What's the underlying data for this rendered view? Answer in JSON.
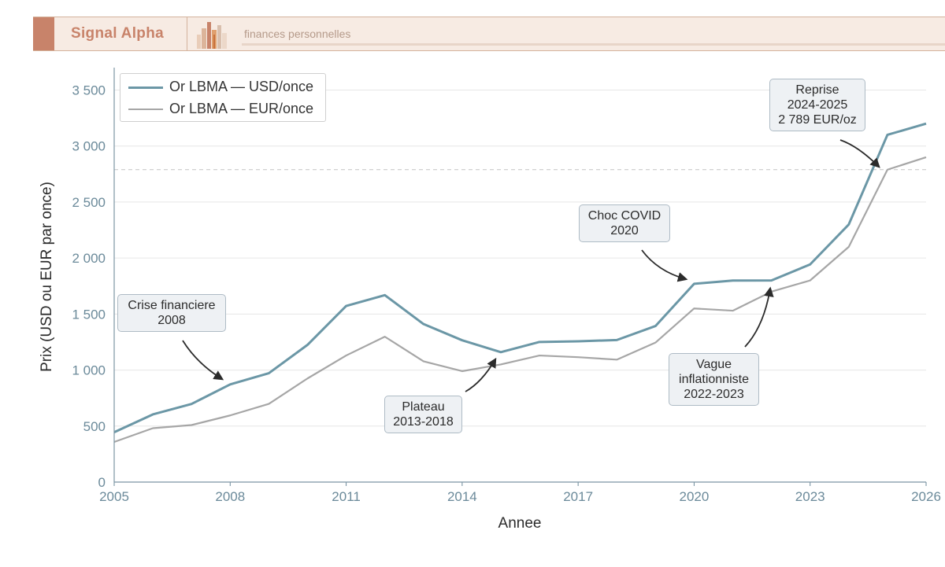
{
  "header": {
    "brand": "Signal Alpha",
    "tagline": "finances personnelles",
    "brand_color": "#c8836a",
    "logo_icon": "city-skyline-icon"
  },
  "chart_data": {
    "type": "line",
    "title": "",
    "xlabel": "Annee",
    "ylabel": "Prix (USD ou EUR par once)",
    "xlim": [
      2005,
      2026
    ],
    "ylim": [
      0,
      3700
    ],
    "x_ticks": [
      2005,
      2008,
      2011,
      2014,
      2017,
      2020,
      2023,
      2026
    ],
    "y_ticks": [
      0,
      500,
      1000,
      1500,
      2000,
      2500,
      3000,
      3500
    ],
    "y_tick_labels": [
      "0",
      "500",
      "1 000",
      "1 500",
      "2 000",
      "2 500",
      "3 000",
      "3 500"
    ],
    "grid": "horizontal",
    "legend_position": "top-left",
    "x": [
      2005,
      2006,
      2007,
      2008,
      2009,
      2010,
      2011,
      2012,
      2013,
      2014,
      2015,
      2016,
      2017,
      2018,
      2019,
      2020,
      2021,
      2022,
      2023,
      2024,
      2025,
      2026
    ],
    "series": [
      {
        "name": "Or LBMA — USD/once",
        "color": "#6b97a6",
        "values": [
          445,
          604,
          697,
          872,
          972,
          1225,
          1572,
          1669,
          1411,
          1266,
          1160,
          1251,
          1257,
          1268,
          1393,
          1770,
          1799,
          1800,
          1943,
          2300,
          3100,
          3200
        ]
      },
      {
        "name": "Or LBMA — EUR/once",
        "color": "#a6a6a6",
        "values": [
          358,
          481,
          509,
          595,
          698,
          925,
          1130,
          1298,
          1078,
          990,
          1050,
          1130,
          1115,
          1093,
          1245,
          1550,
          1530,
          1700,
          1800,
          2100,
          2789,
          2900
        ]
      }
    ],
    "reference_line": {
      "y": 2789,
      "style": "dashed"
    },
    "annotations": [
      {
        "text": [
          "Crise financiere",
          "2008"
        ],
        "x": 2008,
        "y": 872
      },
      {
        "text": [
          "Plateau",
          "2013-2018"
        ],
        "x": 2015,
        "y": 1110
      },
      {
        "text": [
          "Choc COVID",
          "2020"
        ],
        "x": 2020,
        "y": 1770
      },
      {
        "text": [
          "Vague",
          "inflationniste",
          "2022-2023"
        ],
        "x": 2022,
        "y": 1700
      },
      {
        "text": [
          "Reprise",
          "2024-2025",
          "2 789 EUR/oz"
        ],
        "x": 2025,
        "y": 2789
      }
    ]
  }
}
